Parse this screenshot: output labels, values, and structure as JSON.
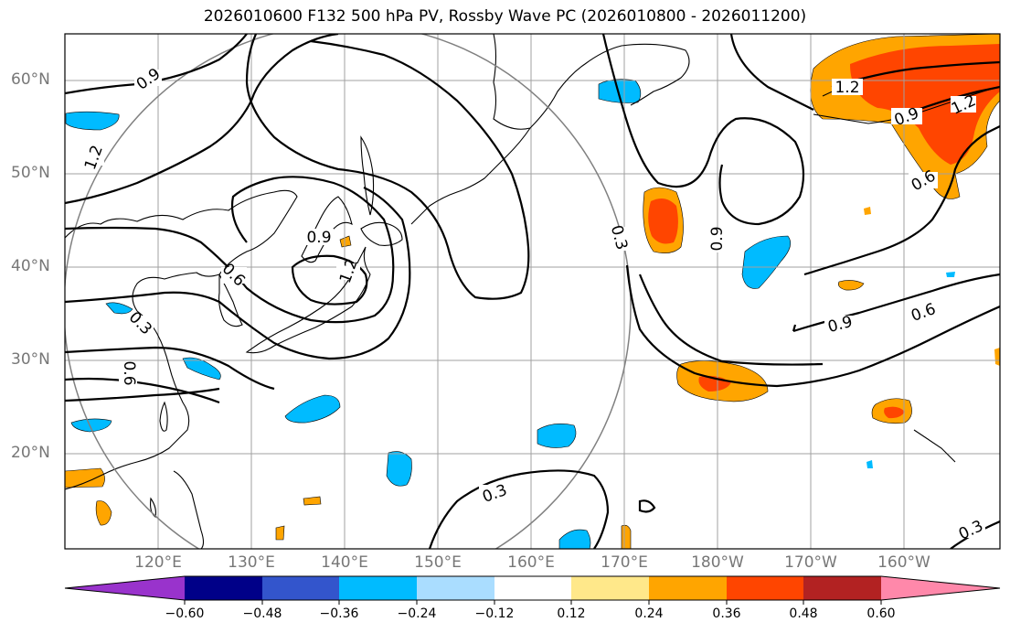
{
  "title": "2026010600 F132 500 hPa PV, Rossby Wave PC (2026010800 - 2026011200)",
  "lat_labels": [
    "60°N",
    "50°N",
    "40°N",
    "30°N",
    "20°N"
  ],
  "lon_labels": [
    "120°E",
    "130°E",
    "140°E",
    "150°E",
    "160°E",
    "170°E",
    "180°W",
    "170°W",
    "160°W"
  ],
  "contour_labels": [
    "0.9",
    "1.2",
    "0.9",
    "0.9",
    "1.2",
    "0.6",
    "0.3",
    "0.6",
    "0.3",
    "0.9",
    "1.2",
    "1.2",
    "0.6",
    "0.9",
    "0.6",
    "0.3",
    "0.3"
  ],
  "colorbar": {
    "tick_labels": [
      "−0.60",
      "−0.48",
      "−0.36",
      "−0.24",
      "−0.12",
      "0.12",
      "0.24",
      "0.36",
      "0.48",
      "0.60"
    ],
    "colors": [
      "#9933cc",
      "#000088",
      "#3355cc",
      "#00bbff",
      "#aaddff",
      "#ffffff",
      "#ffe88a",
      "#ffa500",
      "#ff4500",
      "#b22222",
      "#ff88aa"
    ]
  }
}
